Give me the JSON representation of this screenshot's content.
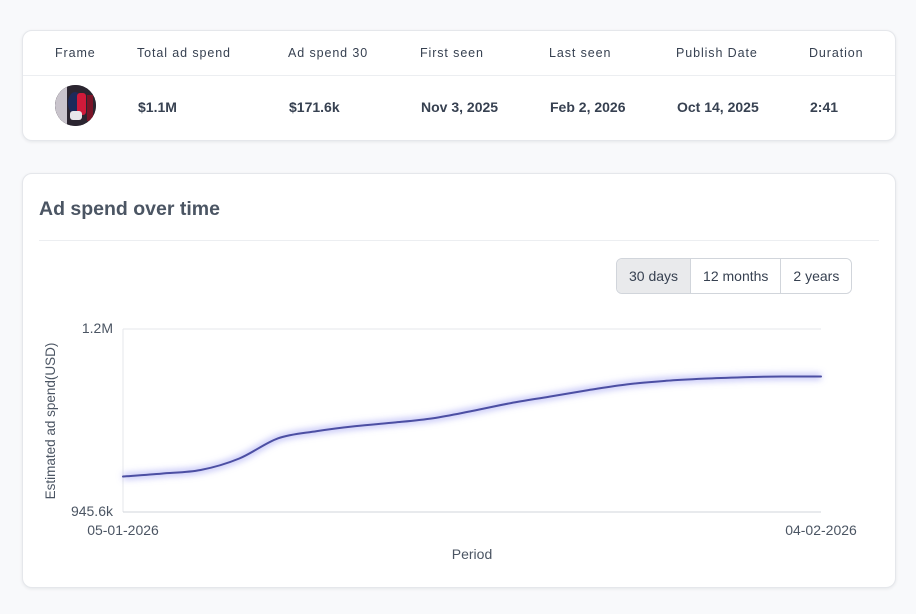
{
  "table": {
    "columns": [
      "Frame",
      "Total ad spend",
      "Ad spend 30",
      "First seen",
      "Last seen",
      "Publish Date",
      "Duration"
    ],
    "row": {
      "frame_thumbnail": "video-frame-thumbnail",
      "total_ad_spend": "$1.1M",
      "ad_spend_30": "$171.6k",
      "first_seen": "Nov 3, 2025",
      "last_seen": "Feb 2, 2026",
      "publish_date": "Oct 14, 2025",
      "duration": "2:41"
    }
  },
  "chart_section": {
    "title": "Ad spend over time",
    "ranges": [
      {
        "label": "30 days",
        "active": true
      },
      {
        "label": "12 months",
        "active": false
      },
      {
        "label": "2 years",
        "active": false
      }
    ]
  },
  "chart_data": {
    "type": "line",
    "title": "",
    "xlabel": "Period",
    "ylabel": "Estimated ad spend(USD)",
    "x_tick_labels": [
      "05-01-2026",
      "04-02-2026"
    ],
    "y_tick_labels": [
      "1.2M",
      "945.6k"
    ],
    "ylim": [
      945600,
      1200000
    ],
    "series": [
      {
        "name": "Estimated ad spend",
        "color": "#4c4fa3",
        "values": [
          995000,
          999000,
          1004000,
          1020000,
          1048000,
          1058000,
          1065000,
          1070000,
          1076000,
          1086000,
          1097000,
          1106000,
          1115000,
          1123000,
          1128000,
          1131000,
          1133000,
          1134000,
          1134000
        ]
      }
    ]
  }
}
